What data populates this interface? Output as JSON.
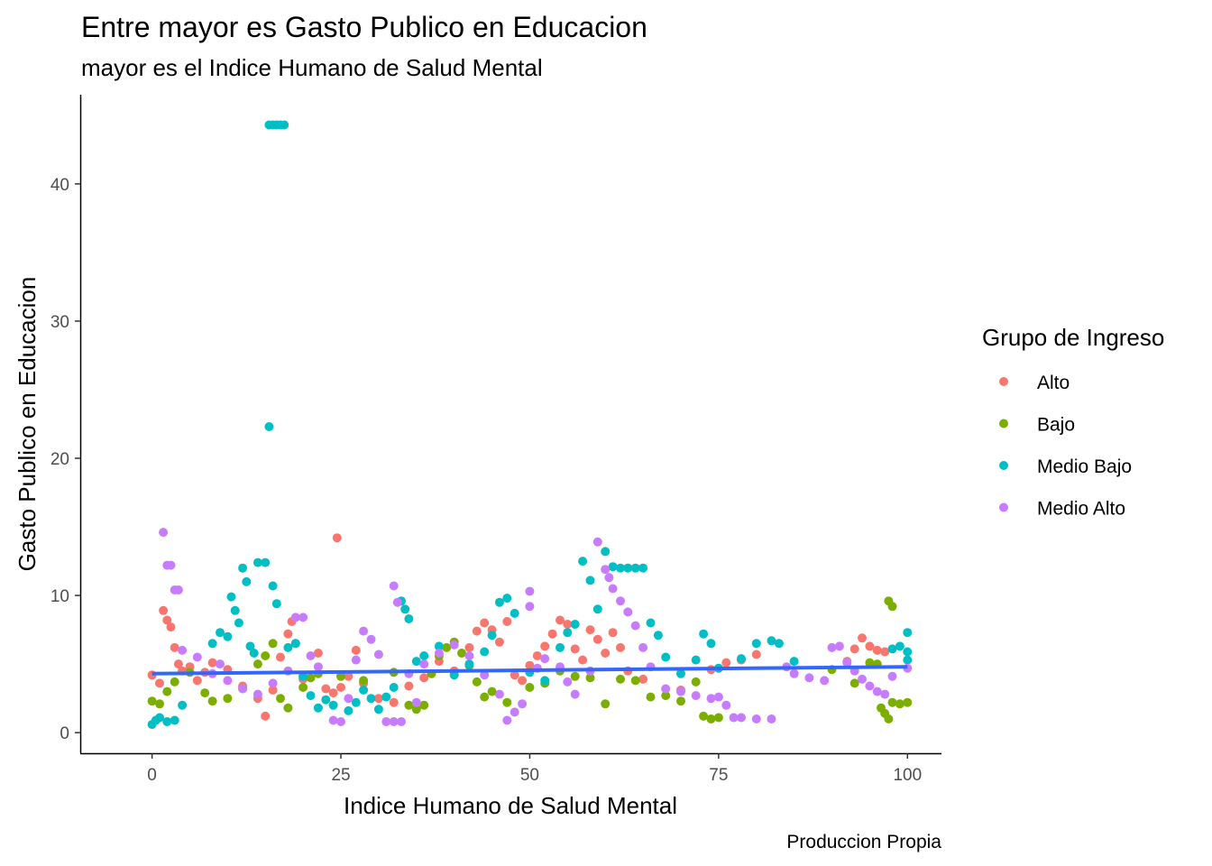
{
  "chart_data": {
    "type": "scatter",
    "title": "Entre mayor es Gasto Publico en Educacion",
    "subtitle": "mayor es el Indice Humano de Salud Mental",
    "caption": "Produccion Propia",
    "xlabel": "Indice Humano de Salud Mental",
    "ylabel": "Gasto Publico en Educacion",
    "xlim": [
      -9.5,
      104.5
    ],
    "ylim": [
      -1.5,
      46.5
    ],
    "xticks": [
      0,
      25,
      50,
      75,
      100
    ],
    "yticks": [
      0,
      10,
      20,
      30,
      40
    ],
    "grid": false,
    "legend": {
      "title": "Grupo de Ingreso",
      "position": "right",
      "entries": [
        "Alto",
        "Bajo",
        "Medio Bajo",
        "Medio Alto"
      ]
    },
    "colors": {
      "Alto": "#F8766D",
      "Bajo": "#7CAE00",
      "Medio Bajo": "#00BFC4",
      "Medio Alto": "#C77CFF",
      "trend": "#3366FF"
    },
    "trend_line": {
      "x": [
        0,
        100
      ],
      "y": [
        4.3,
        4.8
      ]
    },
    "series": [
      {
        "name": "Alto",
        "points": [
          [
            0,
            4.2
          ],
          [
            1,
            3.6
          ],
          [
            1.5,
            8.9
          ],
          [
            2,
            8.2
          ],
          [
            2.5,
            7.7
          ],
          [
            3,
            6.2
          ],
          [
            3.5,
            5.0
          ],
          [
            4,
            4.5
          ],
          [
            5,
            4.8
          ],
          [
            6,
            3.8
          ],
          [
            7,
            4.4
          ],
          [
            8,
            5.1
          ],
          [
            10,
            4.6
          ],
          [
            12,
            3.4
          ],
          [
            14,
            2.5
          ],
          [
            15,
            1.2
          ],
          [
            16,
            3.1
          ],
          [
            17,
            5.5
          ],
          [
            18,
            7.2
          ],
          [
            18.5,
            8.1
          ],
          [
            19,
            6.5
          ],
          [
            20,
            3.9
          ],
          [
            22,
            5.8
          ],
          [
            23,
            3.2
          ],
          [
            24,
            2.9
          ],
          [
            24.5,
            14.2
          ],
          [
            25,
            3.3
          ],
          [
            26,
            4.1
          ],
          [
            27,
            6.0
          ],
          [
            28,
            3.6
          ],
          [
            30,
            2.5
          ],
          [
            32,
            2.2
          ],
          [
            34,
            3.4
          ],
          [
            36,
            4.0
          ],
          [
            38,
            5.2
          ],
          [
            40,
            4.5
          ],
          [
            42,
            6.2
          ],
          [
            43,
            7.4
          ],
          [
            44,
            8.0
          ],
          [
            45,
            7.5
          ],
          [
            46,
            6.6
          ],
          [
            47,
            8.1
          ],
          [
            48,
            4.2
          ],
          [
            49,
            3.8
          ],
          [
            50,
            4.9
          ],
          [
            51,
            5.6
          ],
          [
            52,
            6.3
          ],
          [
            53,
            7.2
          ],
          [
            54,
            8.2
          ],
          [
            55,
            7.9
          ],
          [
            56,
            6.1
          ],
          [
            57,
            5.3
          ],
          [
            58,
            7.5
          ],
          [
            59,
            6.8
          ],
          [
            60,
            5.8
          ],
          [
            61,
            7.3
          ],
          [
            62,
            6.2
          ],
          [
            63,
            4.5
          ],
          [
            65,
            3.9
          ],
          [
            70,
            3.1
          ],
          [
            74,
            4.6
          ],
          [
            76,
            5.1
          ],
          [
            78,
            5.3
          ],
          [
            80,
            5.7
          ],
          [
            92,
            5.2
          ],
          [
            93,
            6.1
          ],
          [
            94,
            6.9
          ],
          [
            95,
            6.3
          ],
          [
            96,
            6.0
          ],
          [
            97,
            5.9
          ]
        ]
      },
      {
        "name": "Bajo",
        "points": [
          [
            0,
            2.3
          ],
          [
            1,
            2.1
          ],
          [
            2,
            3.0
          ],
          [
            3,
            3.7
          ],
          [
            5,
            4.4
          ],
          [
            7,
            2.9
          ],
          [
            8,
            2.3
          ],
          [
            10,
            2.5
          ],
          [
            12,
            3.2
          ],
          [
            14,
            5.0
          ],
          [
            15,
            5.6
          ],
          [
            16,
            6.5
          ],
          [
            17,
            2.5
          ],
          [
            18,
            1.8
          ],
          [
            20,
            3.3
          ],
          [
            21,
            4.0
          ],
          [
            22,
            4.3
          ],
          [
            25,
            4.1
          ],
          [
            28,
            3.8
          ],
          [
            32,
            4.4
          ],
          [
            34,
            2.0
          ],
          [
            35,
            1.7
          ],
          [
            36,
            2.0
          ],
          [
            37,
            4.3
          ],
          [
            38,
            5.6
          ],
          [
            39,
            6.2
          ],
          [
            40,
            6.6
          ],
          [
            41,
            5.8
          ],
          [
            42,
            4.9
          ],
          [
            43,
            3.7
          ],
          [
            44,
            2.6
          ],
          [
            45,
            3.0
          ],
          [
            47,
            2.2
          ],
          [
            50,
            3.3
          ],
          [
            52,
            3.6
          ],
          [
            54,
            4.5
          ],
          [
            56,
            4.1
          ],
          [
            58,
            4.0
          ],
          [
            60,
            2.1
          ],
          [
            62,
            3.9
          ],
          [
            64,
            3.8
          ],
          [
            66,
            2.6
          ],
          [
            68,
            2.7
          ],
          [
            70,
            2.3
          ],
          [
            72,
            3.7
          ],
          [
            73,
            1.2
          ],
          [
            74,
            1.0
          ],
          [
            75,
            1.1
          ],
          [
            90,
            4.6
          ],
          [
            93,
            3.6
          ],
          [
            95,
            5.1
          ],
          [
            96,
            5.0
          ],
          [
            96.5,
            1.8
          ],
          [
            97,
            1.4
          ],
          [
            97.5,
            1.0
          ],
          [
            97.5,
            9.6
          ],
          [
            98,
            9.2
          ],
          [
            98,
            2.2
          ],
          [
            99,
            2.1
          ],
          [
            100,
            2.2
          ]
        ]
      },
      {
        "name": "Medio Bajo",
        "points": [
          [
            0,
            0.6
          ],
          [
            0.5,
            0.9
          ],
          [
            1,
            1.1
          ],
          [
            2,
            0.8
          ],
          [
            3,
            0.9
          ],
          [
            4,
            2.0
          ],
          [
            8,
            6.5
          ],
          [
            9,
            7.3
          ],
          [
            10,
            7.0
          ],
          [
            10.5,
            9.9
          ],
          [
            11,
            8.9
          ],
          [
            11.5,
            8.0
          ],
          [
            12,
            12.0
          ],
          [
            12.5,
            11.0
          ],
          [
            13,
            6.3
          ],
          [
            13.5,
            5.8
          ],
          [
            14,
            12.4
          ],
          [
            15,
            12.4
          ],
          [
            15.5,
            22.3
          ],
          [
            16,
            10.7
          ],
          [
            16.5,
            9.4
          ],
          [
            15.5,
            44.3
          ],
          [
            16,
            44.3
          ],
          [
            16.5,
            44.3
          ],
          [
            17,
            44.3
          ],
          [
            17.5,
            44.3
          ],
          [
            18,
            6.2
          ],
          [
            19,
            6.5
          ],
          [
            20,
            4.1
          ],
          [
            21,
            2.7
          ],
          [
            22,
            1.8
          ],
          [
            23,
            2.4
          ],
          [
            24,
            2.0
          ],
          [
            26,
            1.6
          ],
          [
            27,
            2.2
          ],
          [
            28,
            3.1
          ],
          [
            29,
            2.5
          ],
          [
            30,
            1.7
          ],
          [
            31,
            2.6
          ],
          [
            32,
            3.3
          ],
          [
            33,
            9.6
          ],
          [
            33.5,
            9.0
          ],
          [
            34,
            8.3
          ],
          [
            35,
            5.2
          ],
          [
            36,
            5.6
          ],
          [
            38,
            6.3
          ],
          [
            40,
            4.2
          ],
          [
            42,
            5.0
          ],
          [
            44,
            5.9
          ],
          [
            45,
            7.1
          ],
          [
            46,
            9.5
          ],
          [
            47,
            9.8
          ],
          [
            48,
            8.7
          ],
          [
            50,
            4.4
          ],
          [
            52,
            3.8
          ],
          [
            54,
            6.2
          ],
          [
            55,
            7.3
          ],
          [
            56,
            7.9
          ],
          [
            57,
            12.5
          ],
          [
            58,
            11.1
          ],
          [
            59,
            9.0
          ],
          [
            60,
            13.2
          ],
          [
            61,
            12.1
          ],
          [
            62,
            12.0
          ],
          [
            63,
            12.0
          ],
          [
            64,
            12.0
          ],
          [
            65,
            12.0
          ],
          [
            66,
            8.0
          ],
          [
            67,
            7.1
          ],
          [
            68,
            5.5
          ],
          [
            70,
            4.3
          ],
          [
            72,
            5.3
          ],
          [
            73,
            7.2
          ],
          [
            74,
            6.5
          ],
          [
            75,
            4.7
          ],
          [
            78,
            5.4
          ],
          [
            80,
            6.5
          ],
          [
            82,
            6.7
          ],
          [
            83,
            6.5
          ],
          [
            85,
            5.2
          ],
          [
            98,
            6.1
          ],
          [
            99,
            6.3
          ],
          [
            100,
            7.3
          ],
          [
            100,
            5.9
          ],
          [
            100,
            5.3
          ]
        ]
      },
      {
        "name": "Medio Alto",
        "points": [
          [
            1.5,
            14.6
          ],
          [
            2,
            12.2
          ],
          [
            2.5,
            12.2
          ],
          [
            3,
            10.4
          ],
          [
            3.5,
            10.4
          ],
          [
            4,
            6.0
          ],
          [
            6,
            5.5
          ],
          [
            8,
            4.3
          ],
          [
            9,
            5.0
          ],
          [
            10,
            3.8
          ],
          [
            12,
            3.2
          ],
          [
            14,
            2.8
          ],
          [
            16,
            3.6
          ],
          [
            18,
            4.5
          ],
          [
            19,
            8.4
          ],
          [
            20,
            8.4
          ],
          [
            21,
            5.6
          ],
          [
            22,
            4.8
          ],
          [
            24,
            0.9
          ],
          [
            25,
            0.8
          ],
          [
            26,
            2.5
          ],
          [
            27,
            5.3
          ],
          [
            28,
            7.4
          ],
          [
            29,
            6.8
          ],
          [
            30,
            5.7
          ],
          [
            31,
            0.8
          ],
          [
            32,
            0.8
          ],
          [
            33,
            0.8
          ],
          [
            32,
            10.7
          ],
          [
            32.5,
            9.5
          ],
          [
            34,
            4.3
          ],
          [
            35,
            2.2
          ],
          [
            36,
            5.0
          ],
          [
            38,
            5.8
          ],
          [
            40,
            6.4
          ],
          [
            42,
            5.6
          ],
          [
            44,
            4.2
          ],
          [
            46,
            2.8
          ],
          [
            47,
            0.9
          ],
          [
            48,
            1.5
          ],
          [
            49,
            2.1
          ],
          [
            50,
            10.3
          ],
          [
            50,
            9.2
          ],
          [
            51,
            4.7
          ],
          [
            52,
            5.4
          ],
          [
            54,
            4.8
          ],
          [
            55,
            3.7
          ],
          [
            56,
            2.8
          ],
          [
            58,
            4.5
          ],
          [
            59,
            13.9
          ],
          [
            60,
            11.9
          ],
          [
            60.5,
            11.3
          ],
          [
            61,
            10.5
          ],
          [
            62,
            9.6
          ],
          [
            63,
            8.8
          ],
          [
            64,
            7.8
          ],
          [
            65,
            6.2
          ],
          [
            66,
            4.8
          ],
          [
            68,
            3.2
          ],
          [
            70,
            3.0
          ],
          [
            72,
            2.7
          ],
          [
            74,
            2.5
          ],
          [
            75,
            2.6
          ],
          [
            76,
            2.0
          ],
          [
            77,
            1.1
          ],
          [
            78,
            1.1
          ],
          [
            80,
            1.0
          ],
          [
            82,
            1.0
          ],
          [
            84,
            4.8
          ],
          [
            85,
            4.3
          ],
          [
            87,
            4.0
          ],
          [
            89,
            3.8
          ],
          [
            90,
            6.2
          ],
          [
            91,
            6.3
          ],
          [
            92,
            5.1
          ],
          [
            93,
            4.5
          ],
          [
            94,
            3.9
          ],
          [
            95,
            3.4
          ],
          [
            96,
            3.0
          ],
          [
            97,
            2.8
          ],
          [
            98,
            4.1
          ],
          [
            100,
            4.7
          ]
        ]
      }
    ]
  }
}
